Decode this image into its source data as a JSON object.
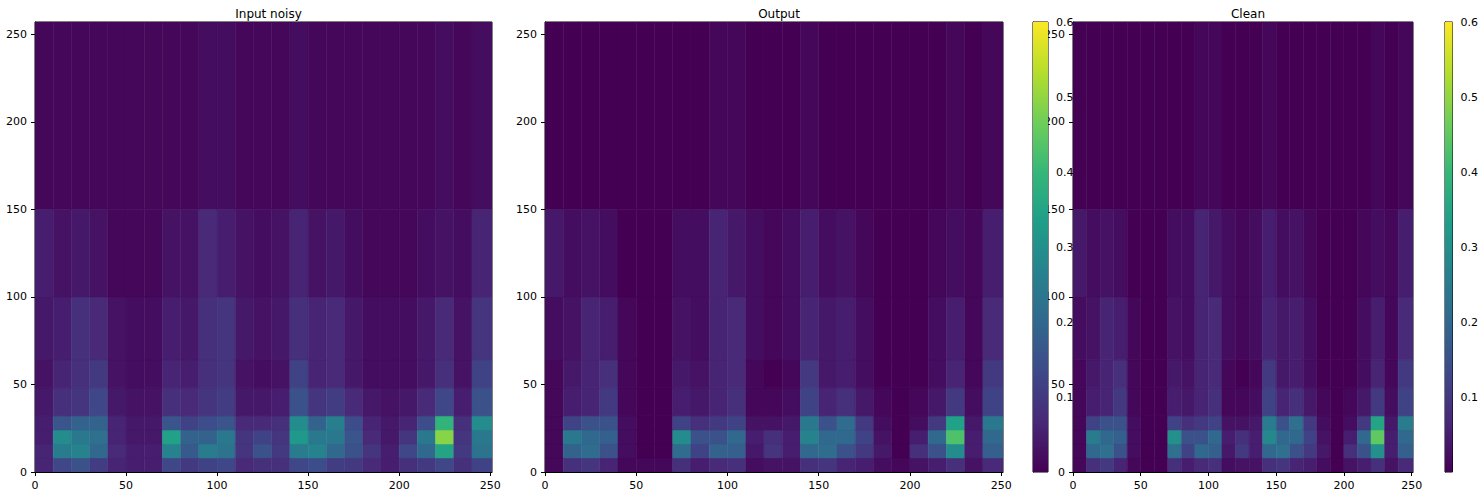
{
  "chart_data": [
    {
      "type": "heatmap",
      "title": "Input noisy",
      "xlim": [
        0,
        251
      ],
      "ylim": [
        0,
        257
      ],
      "xticks": [
        0,
        50,
        100,
        150,
        200,
        250
      ],
      "yticks": [
        0,
        50,
        100,
        150,
        200,
        250
      ],
      "x_edges": [
        0,
        10,
        20,
        30,
        40,
        50,
        60,
        70,
        80,
        90,
        100,
        110,
        120,
        130,
        140,
        150,
        160,
        170,
        180,
        190,
        200,
        210,
        220,
        230,
        240,
        251
      ],
      "y_edges": [
        0,
        8,
        16,
        24,
        32,
        48,
        64,
        100,
        150,
        257
      ],
      "color_range": [
        0,
        0.6
      ],
      "z": [
        [
          0.06,
          0.13,
          0.15,
          0.11,
          0.06,
          0.05,
          0.05,
          0.13,
          0.1,
          0.12,
          0.13,
          0.07,
          0.08,
          0.08,
          0.13,
          0.14,
          0.11,
          0.1,
          0.07,
          0.05,
          0.08,
          0.1,
          0.13,
          0.08,
          0.12
        ],
        [
          0.06,
          0.25,
          0.27,
          0.2,
          0.07,
          0.05,
          0.05,
          0.27,
          0.17,
          0.25,
          0.23,
          0.09,
          0.15,
          0.1,
          0.25,
          0.27,
          0.2,
          0.15,
          0.09,
          0.05,
          0.13,
          0.2,
          0.35,
          0.1,
          0.23
        ],
        [
          0.05,
          0.29,
          0.24,
          0.22,
          0.06,
          0.04,
          0.04,
          0.34,
          0.19,
          0.19,
          0.24,
          0.09,
          0.12,
          0.09,
          0.32,
          0.24,
          0.24,
          0.16,
          0.07,
          0.04,
          0.09,
          0.24,
          0.49,
          0.09,
          0.24
        ],
        [
          0.05,
          0.16,
          0.19,
          0.19,
          0.06,
          0.04,
          0.04,
          0.16,
          0.12,
          0.14,
          0.16,
          0.07,
          0.07,
          0.08,
          0.29,
          0.19,
          0.26,
          0.14,
          0.06,
          0.04,
          0.06,
          0.14,
          0.39,
          0.08,
          0.29
        ],
        [
          0.04,
          0.08,
          0.09,
          0.13,
          0.04,
          0.03,
          0.03,
          0.08,
          0.07,
          0.09,
          0.11,
          0.04,
          0.04,
          0.05,
          0.15,
          0.09,
          0.11,
          0.07,
          0.04,
          0.03,
          0.04,
          0.07,
          0.13,
          0.05,
          0.15
        ],
        [
          0.03,
          0.06,
          0.08,
          0.1,
          0.03,
          0.02,
          0.02,
          0.06,
          0.05,
          0.08,
          0.09,
          0.03,
          0.02,
          0.03,
          0.12,
          0.06,
          0.07,
          0.04,
          0.02,
          0.02,
          0.02,
          0.04,
          0.08,
          0.03,
          0.12
        ],
        [
          0.04,
          0.05,
          0.08,
          0.07,
          0.03,
          0.02,
          0.02,
          0.05,
          0.04,
          0.08,
          0.09,
          0.04,
          0.03,
          0.04,
          0.08,
          0.06,
          0.07,
          0.04,
          0.02,
          0.02,
          0.02,
          0.04,
          0.07,
          0.03,
          0.09
        ],
        [
          0.05,
          0.03,
          0.04,
          0.03,
          0.01,
          0.01,
          0.01,
          0.03,
          0.03,
          0.07,
          0.05,
          0.03,
          0.02,
          0.03,
          0.06,
          0.03,
          0.04,
          0.02,
          0.01,
          0.01,
          0.01,
          0.02,
          0.03,
          0.02,
          0.06
        ],
        [
          0.01,
          0.01,
          0.01,
          0.01,
          0.01,
          0.01,
          0.01,
          0.01,
          0.01,
          0.02,
          0.02,
          0.01,
          0.01,
          0.01,
          0.02,
          0.01,
          0.01,
          0.01,
          0.01,
          0.01,
          0.01,
          0.01,
          0.02,
          0.01,
          0.02
        ]
      ]
    },
    {
      "type": "heatmap",
      "title": "Output",
      "xlim": [
        0,
        251
      ],
      "ylim": [
        0,
        257
      ],
      "xticks": [
        0,
        50,
        100,
        150,
        200,
        250
      ],
      "yticks": [
        0,
        50,
        100,
        150,
        200,
        250
      ],
      "x_edges": [
        0,
        10,
        20,
        30,
        40,
        50,
        60,
        70,
        80,
        90,
        100,
        110,
        120,
        130,
        140,
        150,
        160,
        170,
        180,
        190,
        200,
        210,
        220,
        230,
        240,
        251
      ],
      "y_edges": [
        0,
        8,
        16,
        24,
        32,
        48,
        64,
        100,
        150,
        257
      ],
      "color_range": [
        0,
        0.6
      ],
      "color_ticks": [
        0.1,
        0.2,
        0.3,
        0.4,
        0.5,
        0.6
      ],
      "z": [
        [
          0.01,
          0.08,
          0.09,
          0.06,
          0.01,
          0.01,
          0.01,
          0.08,
          0.05,
          0.07,
          0.08,
          0.02,
          0.03,
          0.03,
          0.08,
          0.09,
          0.06,
          0.05,
          0.02,
          0.01,
          0.03,
          0.05,
          0.08,
          0.03,
          0.07
        ],
        [
          0.01,
          0.19,
          0.21,
          0.15,
          0.02,
          0.0,
          0.0,
          0.21,
          0.12,
          0.19,
          0.18,
          0.04,
          0.09,
          0.05,
          0.2,
          0.21,
          0.15,
          0.1,
          0.04,
          0.0,
          0.08,
          0.15,
          0.29,
          0.05,
          0.18
        ],
        [
          0.01,
          0.24,
          0.2,
          0.18,
          0.02,
          0.0,
          0.0,
          0.29,
          0.15,
          0.15,
          0.2,
          0.05,
          0.08,
          0.05,
          0.27,
          0.2,
          0.2,
          0.12,
          0.03,
          0.0,
          0.05,
          0.2,
          0.43,
          0.05,
          0.2
        ],
        [
          0.01,
          0.12,
          0.15,
          0.15,
          0.02,
          0.0,
          0.0,
          0.12,
          0.08,
          0.1,
          0.12,
          0.03,
          0.03,
          0.04,
          0.24,
          0.15,
          0.21,
          0.1,
          0.02,
          0.0,
          0.02,
          0.1,
          0.34,
          0.04,
          0.24
        ],
        [
          0.01,
          0.05,
          0.06,
          0.1,
          0.01,
          0.0,
          0.0,
          0.05,
          0.04,
          0.06,
          0.08,
          0.01,
          0.01,
          0.02,
          0.12,
          0.06,
          0.08,
          0.04,
          0.01,
          0.0,
          0.01,
          0.04,
          0.1,
          0.02,
          0.12
        ],
        [
          0.01,
          0.04,
          0.06,
          0.08,
          0.01,
          0.0,
          0.0,
          0.04,
          0.03,
          0.06,
          0.07,
          0.01,
          0.0,
          0.01,
          0.1,
          0.04,
          0.05,
          0.02,
          0.0,
          0.0,
          0.0,
          0.02,
          0.06,
          0.01,
          0.1
        ],
        [
          0.02,
          0.03,
          0.06,
          0.05,
          0.01,
          0.0,
          0.0,
          0.03,
          0.02,
          0.06,
          0.07,
          0.02,
          0.01,
          0.02,
          0.06,
          0.04,
          0.05,
          0.02,
          0.0,
          0.0,
          0.0,
          0.02,
          0.05,
          0.01,
          0.07
        ],
        [
          0.04,
          0.02,
          0.03,
          0.02,
          0.0,
          0.0,
          0.0,
          0.02,
          0.02,
          0.06,
          0.04,
          0.02,
          0.01,
          0.02,
          0.05,
          0.02,
          0.03,
          0.01,
          0.0,
          0.0,
          0.0,
          0.01,
          0.02,
          0.01,
          0.05
        ],
        [
          0.0,
          0.0,
          0.0,
          0.0,
          0.0,
          0.0,
          0.0,
          0.0,
          0.0,
          0.01,
          0.01,
          0.0,
          0.0,
          0.0,
          0.01,
          0.0,
          0.0,
          0.0,
          0.0,
          0.0,
          0.0,
          0.0,
          0.01,
          0.0,
          0.01
        ]
      ]
    },
    {
      "type": "heatmap",
      "title": "Clean",
      "xlim": [
        0,
        251
      ],
      "ylim": [
        0,
        257
      ],
      "xticks": [
        0,
        50,
        100,
        150,
        200,
        250
      ],
      "yticks": [
        0,
        50,
        100,
        150,
        200,
        250
      ],
      "x_edges": [
        0,
        10,
        20,
        30,
        40,
        50,
        60,
        70,
        80,
        90,
        100,
        110,
        120,
        130,
        140,
        150,
        160,
        170,
        180,
        190,
        200,
        210,
        220,
        230,
        240,
        251
      ],
      "y_edges": [
        0,
        8,
        16,
        24,
        32,
        48,
        64,
        100,
        150,
        257
      ],
      "color_range": [
        0,
        0.6
      ],
      "color_ticks": [
        0.1,
        0.2,
        0.3,
        0.4,
        0.5,
        0.6
      ],
      "z": [
        [
          0.01,
          0.08,
          0.1,
          0.06,
          0.01,
          0.0,
          0.0,
          0.08,
          0.05,
          0.07,
          0.08,
          0.02,
          0.03,
          0.03,
          0.08,
          0.09,
          0.06,
          0.05,
          0.02,
          0.0,
          0.03,
          0.05,
          0.08,
          0.03,
          0.07
        ],
        [
          0.01,
          0.2,
          0.22,
          0.15,
          0.02,
          0.0,
          0.0,
          0.22,
          0.12,
          0.2,
          0.18,
          0.04,
          0.1,
          0.05,
          0.2,
          0.22,
          0.15,
          0.1,
          0.04,
          0.0,
          0.08,
          0.15,
          0.3,
          0.05,
          0.18
        ],
        [
          0.01,
          0.25,
          0.2,
          0.18,
          0.02,
          0.0,
          0.0,
          0.3,
          0.15,
          0.15,
          0.2,
          0.05,
          0.08,
          0.05,
          0.28,
          0.2,
          0.2,
          0.12,
          0.03,
          0.0,
          0.05,
          0.2,
          0.45,
          0.05,
          0.2
        ],
        [
          0.01,
          0.12,
          0.15,
          0.15,
          0.02,
          0.0,
          0.0,
          0.12,
          0.08,
          0.1,
          0.12,
          0.03,
          0.03,
          0.04,
          0.25,
          0.15,
          0.22,
          0.1,
          0.02,
          0.0,
          0.02,
          0.1,
          0.35,
          0.04,
          0.25
        ],
        [
          0.01,
          0.05,
          0.06,
          0.1,
          0.01,
          0.0,
          0.0,
          0.05,
          0.04,
          0.06,
          0.08,
          0.01,
          0.01,
          0.02,
          0.12,
          0.06,
          0.08,
          0.04,
          0.01,
          0.0,
          0.01,
          0.04,
          0.1,
          0.02,
          0.12
        ],
        [
          0.01,
          0.04,
          0.06,
          0.08,
          0.01,
          0.0,
          0.0,
          0.04,
          0.03,
          0.06,
          0.07,
          0.01,
          0.0,
          0.01,
          0.1,
          0.04,
          0.05,
          0.02,
          0.0,
          0.0,
          0.0,
          0.02,
          0.06,
          0.01,
          0.1
        ],
        [
          0.02,
          0.03,
          0.06,
          0.05,
          0.01,
          0.0,
          0.0,
          0.03,
          0.02,
          0.06,
          0.07,
          0.02,
          0.01,
          0.02,
          0.06,
          0.04,
          0.05,
          0.02,
          0.0,
          0.0,
          0.0,
          0.02,
          0.05,
          0.01,
          0.07
        ],
        [
          0.04,
          0.02,
          0.03,
          0.02,
          0.0,
          0.0,
          0.0,
          0.02,
          0.02,
          0.06,
          0.04,
          0.02,
          0.01,
          0.02,
          0.05,
          0.02,
          0.03,
          0.01,
          0.0,
          0.0,
          0.0,
          0.01,
          0.02,
          0.01,
          0.05
        ],
        [
          0.0,
          0.0,
          0.0,
          0.0,
          0.0,
          0.0,
          0.0,
          0.0,
          0.0,
          0.01,
          0.01,
          0.0,
          0.0,
          0.0,
          0.01,
          0.0,
          0.0,
          0.0,
          0.0,
          0.0,
          0.0,
          0.0,
          0.01,
          0.0,
          0.01
        ]
      ]
    }
  ]
}
